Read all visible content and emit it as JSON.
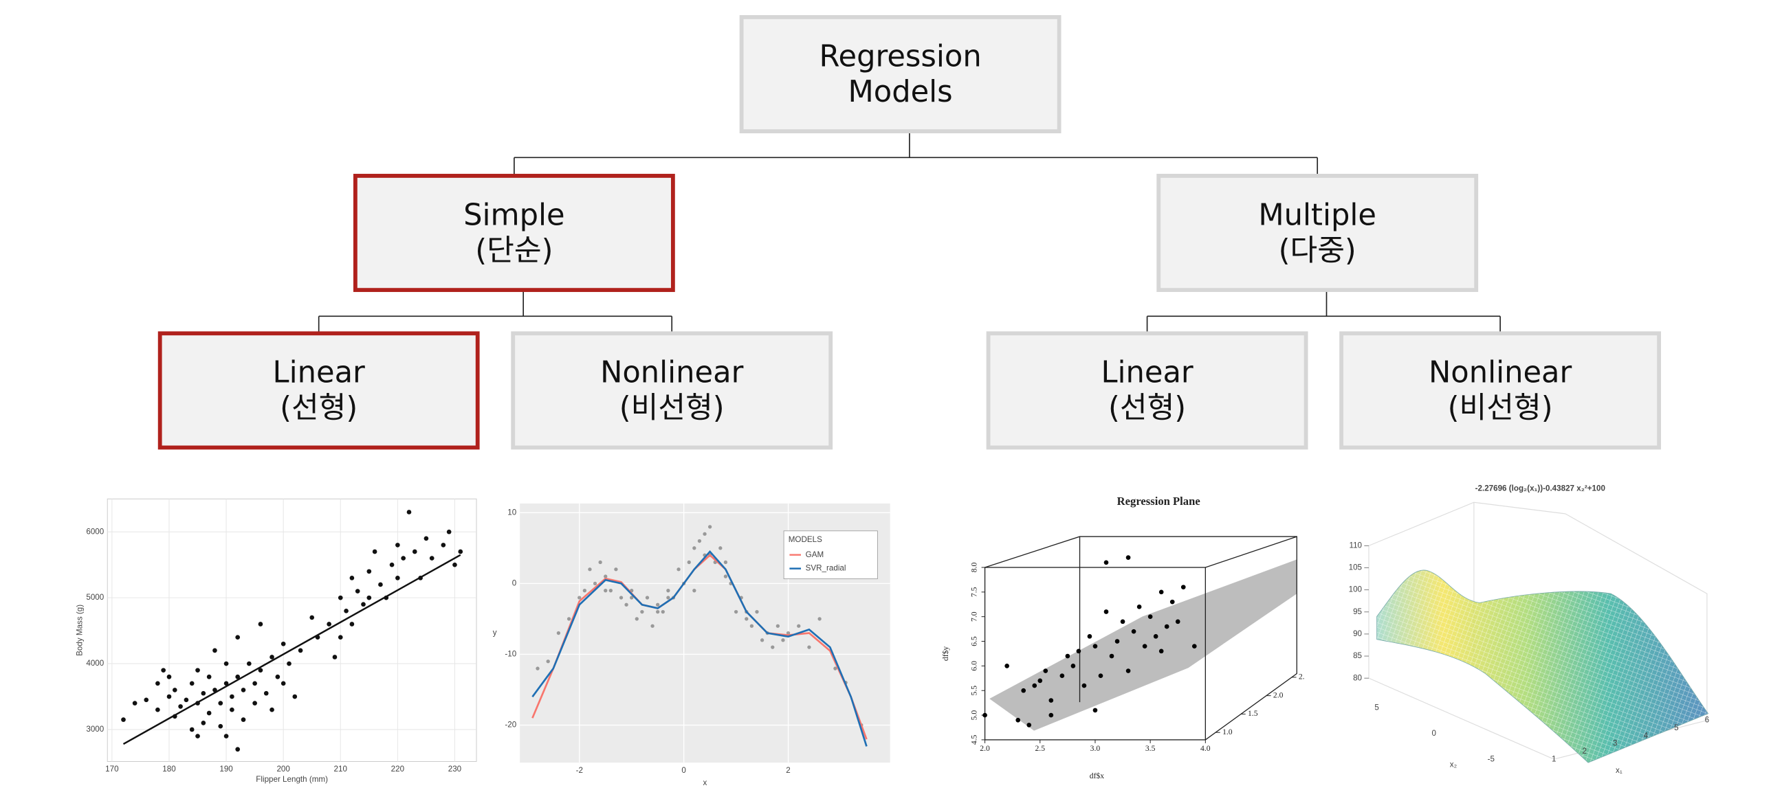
{
  "nodes": [
    {
      "lines": [
        "Regression",
        "Models"
      ],
      "highlighted": false
    },
    {
      "lines": [
        "Simple",
        "(단순)"
      ],
      "highlighted": true
    },
    {
      "lines": [
        "Multiple",
        "(다중)"
      ],
      "highlighted": false
    },
    {
      "lines": [
        "Linear",
        "(선형)"
      ],
      "highlighted": true
    },
    {
      "lines": [
        "Nonlinear",
        "(비선형)"
      ],
      "highlighted": false
    },
    {
      "lines": [
        "Linear",
        "(선형)"
      ],
      "highlighted": false
    },
    {
      "lines": [
        "Nonlinear",
        "(비선형)"
      ],
      "highlighted": false
    }
  ],
  "chart_data": [
    {
      "type": "scatter",
      "x_label": "Flipper Length (mm)",
      "y_label": "Body Mass (g)",
      "xlim": [
        169.2,
        233.8
      ],
      "ylim": [
        2515,
        6500
      ],
      "xticks": [
        170,
        180,
        190,
        200,
        210,
        220,
        230
      ],
      "yticks": [
        3000,
        4000,
        5000,
        6000
      ],
      "grid": true,
      "x": [
        172,
        174,
        176,
        178,
        178,
        179,
        180,
        180,
        181,
        181,
        182,
        183,
        184,
        184,
        185,
        185,
        186,
        186,
        187,
        187,
        188,
        188,
        189,
        189,
        190,
        190,
        190,
        191,
        191,
        192,
        192,
        193,
        193,
        194,
        195,
        195,
        196,
        196,
        197,
        198,
        198,
        199,
        200,
        200,
        201,
        202,
        203,
        205,
        206,
        208,
        209,
        210,
        210,
        211,
        212,
        212,
        213,
        214,
        215,
        215,
        216,
        217,
        218,
        219,
        220,
        220,
        221,
        222,
        223,
        224,
        225,
        226,
        228,
        229,
        230,
        231,
        185,
        192
      ],
      "values": [
        3150,
        3400,
        3450,
        3300,
        3700,
        3900,
        3500,
        3800,
        3200,
        3600,
        3350,
        3450,
        3700,
        3000,
        3400,
        3900,
        3550,
        3100,
        3800,
        3250,
        3600,
        4200,
        3400,
        3050,
        3700,
        4000,
        2900,
        3500,
        3300,
        3800,
        4400,
        3600,
        3150,
        4000,
        3700,
        3400,
        3900,
        4600,
        3550,
        4100,
        3300,
        3800,
        4300,
        3700,
        4000,
        3500,
        4200,
        4700,
        4400,
        4600,
        4100,
        5000,
        4400,
        4800,
        5300,
        4600,
        5100,
        4900,
        5400,
        5000,
        5700,
        5200,
        5000,
        5500,
        5800,
        5300,
        5600,
        6300,
        5700,
        5300,
        5900,
        5600,
        5800,
        6000,
        5500,
        5700,
        2900,
        2700
      ],
      "color": "#111111",
      "fit": {
        "x": [
          172,
          231
        ],
        "values": [
          2780,
          5650
        ],
        "color": "#111111"
      }
    },
    {
      "type": "scatter-lines",
      "x_label": "x",
      "y_label": "y",
      "legend_title": "MODELS",
      "xlim": [
        -3.14,
        3.95
      ],
      "ylim": [
        -25.3,
        11.3
      ],
      "xticks": [
        -2,
        0,
        2
      ],
      "yticks": [
        10,
        0,
        -10,
        -20
      ],
      "grid": true,
      "x": [
        -2.8,
        -2.6,
        -2.4,
        -2.2,
        -2.0,
        -1.9,
        -1.8,
        -1.7,
        -1.6,
        -1.5,
        -1.4,
        -1.3,
        -1.2,
        -1.1,
        -1.0,
        -0.9,
        -0.8,
        -0.7,
        -0.6,
        -0.5,
        -0.4,
        -0.3,
        -0.2,
        -0.1,
        0.0,
        0.1,
        0.2,
        0.3,
        0.4,
        0.5,
        0.6,
        0.7,
        0.8,
        0.9,
        1.0,
        1.1,
        1.2,
        1.3,
        1.4,
        1.5,
        1.6,
        1.7,
        1.8,
        1.9,
        2.0,
        2.2,
        2.4,
        2.6,
        2.9,
        3.1,
        3.4,
        -1.5,
        -1.0,
        -0.5,
        0.2,
        0.5,
        0.8,
        1.2,
        -0.3,
        0.4
      ],
      "values": [
        -12,
        -11,
        -7,
        -5,
        -2,
        -1,
        2,
        0,
        3,
        1,
        -1,
        2,
        -2,
        -3,
        -1,
        -5,
        -4,
        -2,
        -6,
        -3,
        -4,
        -1,
        -2,
        2,
        0,
        3,
        5,
        6,
        4,
        8,
        3,
        5,
        1,
        0,
        -4,
        -2,
        -5,
        -6,
        -4,
        -8,
        -7,
        -9,
        -6,
        -8,
        -7,
        -6,
        -9,
        -5,
        -12,
        -14,
        -20,
        -1,
        -2,
        -4,
        -1,
        4,
        3,
        -4,
        -2,
        7
      ],
      "color": "#555555",
      "series": [
        {
          "name": "GAM",
          "color": "#f8766d",
          "x": [
            -2.9,
            -2.5,
            -2,
            -1.5,
            -1.2,
            -0.8,
            -0.5,
            -0.2,
            0.2,
            0.5,
            0.8,
            1.2,
            1.6,
            2,
            2.4,
            2.8,
            3.2,
            3.5
          ],
          "values": [
            -19,
            -12,
            -2.5,
            0.7,
            0.2,
            -3,
            -3.5,
            -2,
            2,
            4,
            2,
            -4,
            -7,
            -7.3,
            -7,
            -9.5,
            -16,
            -22
          ]
        },
        {
          "name": "SVR_radial",
          "color": "#1f6fb4",
          "x": [
            -2.9,
            -2.5,
            -2,
            -1.5,
            -1.2,
            -0.8,
            -0.5,
            -0.2,
            0.2,
            0.5,
            0.8,
            1.2,
            1.6,
            2,
            2.4,
            2.8,
            3.2,
            3.5
          ],
          "values": [
            -16,
            -12,
            -3,
            0.5,
            0,
            -3,
            -3.5,
            -2,
            2,
            4.5,
            2,
            -4,
            -7,
            -7.5,
            -6.5,
            -9,
            -16,
            -23
          ]
        }
      ]
    },
    {
      "type": "scatter3d",
      "title": "Regression Plane",
      "x_label": "df$x",
      "y_label": "df$y",
      "xlim": [
        2,
        4
      ],
      "ylim": [
        4.5,
        8
      ],
      "zlim": [
        0.8,
        2.6
      ],
      "xticks": [
        {
          "value": 2,
          "label": "2.0"
        },
        2.5,
        {
          "value": 3,
          "label": "3.0"
        },
        3.5,
        {
          "value": 4,
          "label": "4.0"
        }
      ],
      "yticks": [
        4.5,
        {
          "value": 5,
          "label": "5.0"
        },
        5.5,
        {
          "value": 6,
          "label": "6.0"
        },
        6.5,
        {
          "value": 7,
          "label": "7.0"
        },
        7.5,
        {
          "value": 8,
          "label": "8.0"
        }
      ],
      "zticks": [
        {
          "value": 1,
          "label": "1.0"
        },
        1.5,
        {
          "value": 2,
          "label": "2.0"
        },
        {
          "value": 2.5,
          "label": "2."
        }
      ],
      "x": [
        2.0,
        2.2,
        2.3,
        2.35,
        2.45,
        2.5,
        2.55,
        2.6,
        2.7,
        2.75,
        2.8,
        2.85,
        2.9,
        2.95,
        3.0,
        3.05,
        3.1,
        3.15,
        3.2,
        3.25,
        3.3,
        3.35,
        3.4,
        3.45,
        3.5,
        3.55,
        3.6,
        3.65,
        3.7,
        3.75,
        3.8,
        3.9,
        3.1,
        3.3,
        2.6,
        3.0,
        3.6,
        2.4
      ],
      "values": [
        5.0,
        6.0,
        4.9,
        5.5,
        5.6,
        5.7,
        5.9,
        5.3,
        5.8,
        6.2,
        6.0,
        6.3,
        5.6,
        6.6,
        6.4,
        5.8,
        7.1,
        6.2,
        6.5,
        6.9,
        5.9,
        6.7,
        7.2,
        6.4,
        7.0,
        6.6,
        7.5,
        6.8,
        7.3,
        6.9,
        7.6,
        6.4,
        8.1,
        8.2,
        5.0,
        5.1,
        6.3,
        4.8
      ],
      "color": "#000000"
    },
    {
      "type": "surface3d",
      "title": "-2.27696 (log₂(x₁))-0.43827 x₂²+100",
      "x_label": "x₁",
      "y_label": "x₂",
      "xlim": [
        1,
        6
      ],
      "ylim": [
        5,
        -5
      ],
      "zlim": [
        80,
        110
      ],
      "xticks": [
        1,
        2,
        3,
        4,
        5,
        6
      ],
      "yticks": [
        5,
        0,
        -5
      ],
      "zticks": [
        80,
        85,
        90,
        95,
        100,
        105,
        110
      ]
    }
  ]
}
